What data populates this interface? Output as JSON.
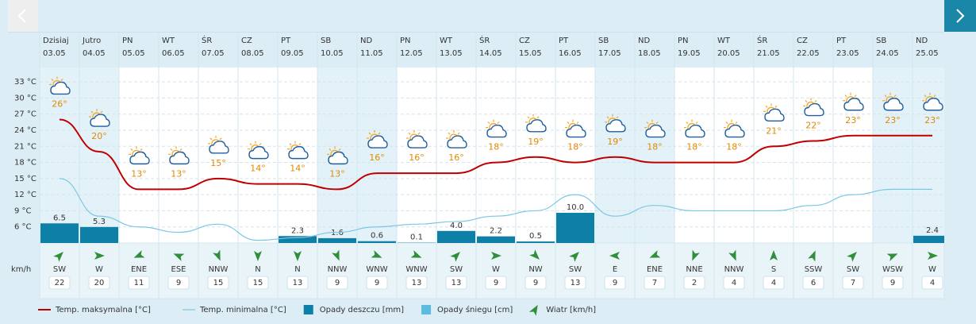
{
  "chart_data": {
    "type": "weather",
    "categories": [
      "Dzisiaj",
      "Jutro",
      "PN",
      "WT",
      "ŚR",
      "CZ",
      "PT",
      "SB",
      "ND",
      "PN",
      "WT",
      "ŚR",
      "CZ",
      "PT",
      "SB",
      "ND",
      "PN",
      "WT",
      "ŚR",
      "CZ",
      "PT",
      "SB",
      "ND"
    ],
    "dates": [
      "03.05",
      "04.05",
      "05.05",
      "06.05",
      "07.05",
      "08.05",
      "09.05",
      "10.05",
      "11.05",
      "12.05",
      "13.05",
      "14.05",
      "15.05",
      "16.05",
      "17.05",
      "18.05",
      "19.05",
      "20.05",
      "21.05",
      "22.05",
      "23.05",
      "24.05",
      "25.05"
    ],
    "ylim": [
      3,
      34.5
    ],
    "yticks": [
      {
        "value": 6,
        "label": "6 °C"
      },
      {
        "value": 9,
        "label": "9 °C"
      },
      {
        "value": 12,
        "label": "12 °C"
      },
      {
        "value": 15,
        "label": "15 °C"
      },
      {
        "value": 18,
        "label": "18 °C"
      },
      {
        "value": 21,
        "label": "21 °C"
      },
      {
        "value": 24,
        "label": "24 °C"
      },
      {
        "value": 27,
        "label": "27 °C"
      },
      {
        "value": 30,
        "label": "30 °C"
      },
      {
        "value": 33,
        "label": "33 °C"
      }
    ],
    "y2lim": [
      0,
      56
    ],
    "series": [
      {
        "name": "Temp. maksymalna [°C]",
        "color": "#c00000",
        "values": [
          26,
          20,
          13,
          13,
          15,
          14,
          14,
          13,
          16,
          16,
          16,
          18,
          19,
          18,
          19,
          18,
          18,
          18,
          21,
          22,
          23,
          23,
          23
        ],
        "value_labels": [
          "26°",
          "20°",
          "13°",
          "13°",
          "15°",
          "14°",
          "14°",
          "13°",
          "16°",
          "16°",
          "16°",
          "18°",
          "19°",
          "18°",
          "19°",
          "18°",
          "18°",
          "18°",
          "21°",
          "22°",
          "23°",
          "23°",
          "23°"
        ]
      },
      {
        "name": "Temp. minimalna [°C]",
        "color": "#7cc8e4",
        "values": [
          15,
          8,
          6,
          5,
          6.5,
          3.5,
          4,
          5,
          6,
          6.5,
          7,
          8,
          9,
          12,
          8,
          10,
          9,
          9,
          9,
          10,
          12,
          13,
          13
        ]
      },
      {
        "name": "Opady deszczu [mm]",
        "color": "#0e7fa6",
        "axis": "y2",
        "values": [
          6.5,
          5.3,
          null,
          null,
          null,
          null,
          2.3,
          1.6,
          0.6,
          0.1,
          4.0,
          2.2,
          0.5,
          10.0,
          null,
          null,
          null,
          null,
          null,
          null,
          null,
          null,
          2.4
        ],
        "value_labels": [
          "6.5",
          "5.3",
          null,
          null,
          null,
          null,
          "2.3",
          "1.6",
          "0.6",
          "0.1",
          "4.0",
          "2.2",
          "0.5",
          "10.0",
          null,
          null,
          null,
          null,
          null,
          null,
          null,
          null,
          "2.4"
        ]
      },
      {
        "name": "Opady śniegu [cm]",
        "color": "#5bbbe0",
        "axis": "y2",
        "values": [
          null,
          null,
          null,
          null,
          null,
          null,
          null,
          null,
          null,
          null,
          null,
          null,
          null,
          null,
          null,
          null,
          null,
          null,
          null,
          null,
          null,
          null,
          null
        ]
      }
    ],
    "wind": {
      "name": "Wiatr [km/h]",
      "unit_label": "km/h",
      "color": "#2f8f3a",
      "directions": [
        "SW",
        "W",
        "ENE",
        "ESE",
        "NNW",
        "N",
        "N",
        "NNW",
        "WNW",
        "WNW",
        "SW",
        "W",
        "NW",
        "SW",
        "E",
        "ENE",
        "NNE",
        "NNW",
        "S",
        "SSW",
        "SW",
        "WSW",
        "W"
      ],
      "values": [
        22,
        20,
        11,
        9,
        15,
        15,
        13,
        9,
        9,
        13,
        13,
        9,
        9,
        13,
        9,
        7,
        2,
        4,
        4,
        6,
        7,
        9,
        4
      ]
    }
  }
}
